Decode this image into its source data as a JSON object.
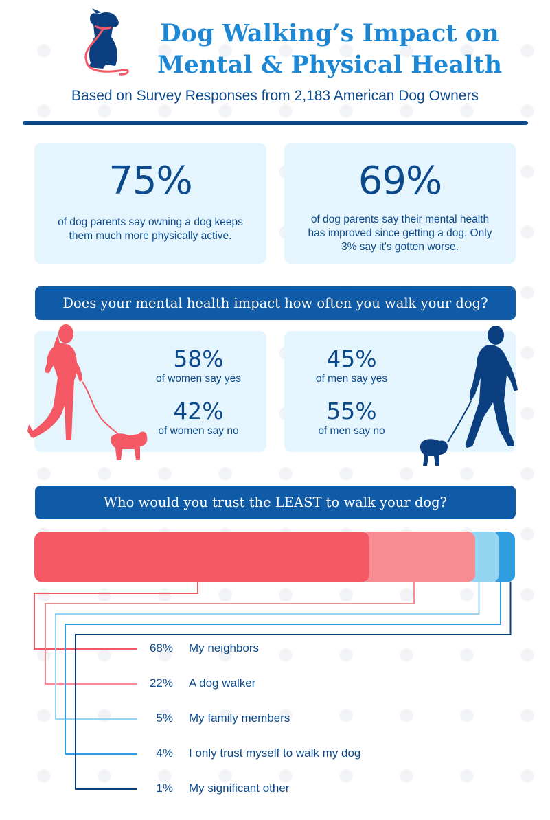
{
  "header": {
    "title_line1": "Dog Walking’s Impact on",
    "title_line2": "Mental & Physical Health",
    "subtitle": "Based on Survey Responses from 2,183 American Dog Owners"
  },
  "stats": [
    {
      "value": "75%",
      "desc_lines": [
        "of dog parents say owning a dog keeps",
        "them much more physically active."
      ]
    },
    {
      "value": "69%",
      "desc_lines": [
        "of dog parents say their mental health",
        "has improved since getting a dog. Only",
        "3% say it's gotten worse."
      ]
    }
  ],
  "question1": "Does your mental health impact how often you walk your dog?",
  "gender": {
    "women": {
      "yes_value": "58%",
      "yes_label": "of women say yes",
      "no_value": "42%",
      "no_label": "of women say no"
    },
    "men": {
      "yes_value": "45%",
      "yes_label": "of men say yes",
      "no_value": "55%",
      "no_label": "of men say no"
    }
  },
  "question2": "Who would you trust the LEAST to walk your dog?",
  "chart_data": {
    "type": "bar",
    "stacked": true,
    "orientation": "horizontal",
    "title": "Who would you trust the LEAST to walk your dog?",
    "series": [
      {
        "name": "My neighbors",
        "value": 68,
        "label": "68%",
        "color": "#f45865"
      },
      {
        "name": "A dog walker",
        "value": 22,
        "label": "22%",
        "color": "#f88c93"
      },
      {
        "name": "My family members",
        "value": 5,
        "label": "5%",
        "color": "#94d6f2"
      },
      {
        "name": "I only trust myself to walk my dog",
        "value": 4,
        "label": "4%",
        "color": "#2f9de0"
      },
      {
        "name": "My significant other",
        "value": 1,
        "label": "1%",
        "color": "#0c3f80"
      }
    ],
    "total": 100,
    "legend": "bottom"
  },
  "colors": {
    "title": "#1e87d4",
    "navy": "#0d4a8b",
    "banner": "#0f5ba7",
    "card": "#e5f5fd",
    "coral": "#f45865"
  },
  "icons": [
    "dog-with-leash-logo",
    "woman-walking-dog-illustration",
    "man-walking-dog-illustration"
  ]
}
